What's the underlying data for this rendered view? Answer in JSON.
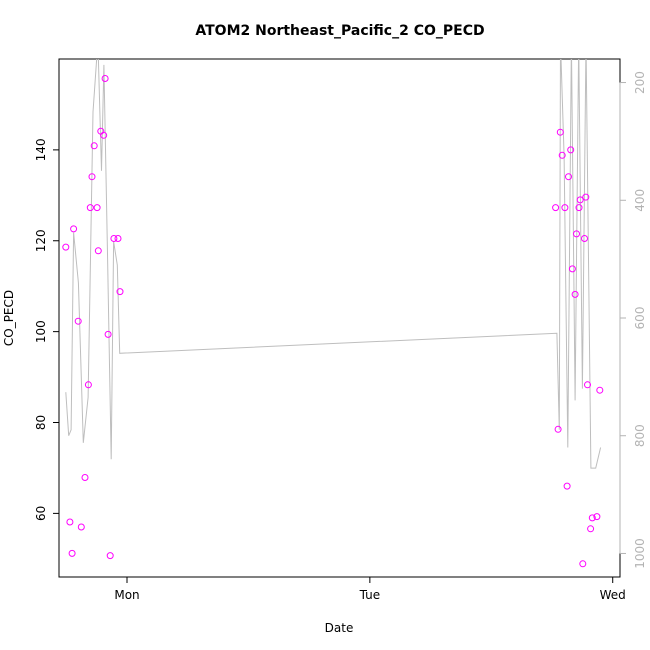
{
  "chart_data": {
    "type": "scatter",
    "title": "ATOM2 Northeast_Pacific_2 CO_PECD",
    "xlabel": "Date",
    "ylabel": "CO_PECD",
    "xlim": [
      -0.28,
      2.03
    ],
    "ylim": [
      46,
      160
    ],
    "x_ticks": [
      {
        "value": 0,
        "label": "Mon"
      },
      {
        "value": 1,
        "label": "Tue"
      },
      {
        "value": 2,
        "label": "Wed"
      }
    ],
    "y_ticks": [
      60,
      80,
      100,
      120,
      140
    ],
    "y2_ticks": [
      200,
      400,
      600,
      800,
      1000
    ],
    "y2_range": [
      160,
      1040
    ],
    "y2_reversed": true,
    "grid": false,
    "colors": {
      "points": "#ff00ff",
      "line": "#bebebe",
      "axis_right": "#b3b3b3"
    },
    "series": [
      {
        "kind": "points",
        "values": [
          [
            -0.252,
            118.6
          ],
          [
            -0.235,
            58.1
          ],
          [
            -0.226,
            51.2
          ],
          [
            -0.22,
            122.6
          ],
          [
            -0.201,
            102.3
          ],
          [
            -0.188,
            57.0
          ],
          [
            -0.173,
            67.9
          ],
          [
            -0.159,
            88.3
          ],
          [
            -0.151,
            127.3
          ],
          [
            -0.144,
            134.1
          ],
          [
            -0.135,
            140.9
          ],
          [
            -0.123,
            127.3
          ],
          [
            -0.118,
            117.8
          ],
          [
            -0.108,
            144.1
          ],
          [
            -0.096,
            143.2
          ],
          [
            -0.09,
            155.7
          ],
          [
            -0.078,
            99.4
          ],
          [
            -0.069,
            50.7
          ],
          [
            -0.054,
            120.5
          ],
          [
            -0.037,
            120.5
          ],
          [
            -0.029,
            108.8
          ],
          [
            1.765,
            127.3
          ],
          [
            1.775,
            78.5
          ],
          [
            1.784,
            143.9
          ],
          [
            1.792,
            138.8
          ],
          [
            1.803,
            127.3
          ],
          [
            1.812,
            66.0
          ],
          [
            1.818,
            134.1
          ],
          [
            1.827,
            140.0
          ],
          [
            1.834,
            113.8
          ],
          [
            1.845,
            108.2
          ],
          [
            1.851,
            121.5
          ],
          [
            1.861,
            127.3
          ],
          [
            1.866,
            129.0
          ],
          [
            1.877,
            48.9
          ],
          [
            1.884,
            120.5
          ],
          [
            1.889,
            129.6
          ],
          [
            1.896,
            88.3
          ],
          [
            1.909,
            56.6
          ],
          [
            1.916,
            59.0
          ],
          [
            1.935,
            59.3
          ],
          [
            1.947,
            87.1
          ]
        ]
      },
      {
        "kind": "line",
        "axis": "right",
        "values": [
          [
            -0.252,
            726
          ],
          [
            -0.24,
            800
          ],
          [
            -0.23,
            790
          ],
          [
            -0.22,
            455
          ],
          [
            -0.2,
            540
          ],
          [
            -0.18,
            812
          ],
          [
            -0.16,
            735
          ],
          [
            -0.14,
            250
          ],
          [
            -0.12,
            130
          ],
          [
            -0.105,
            350
          ],
          [
            -0.095,
            170
          ],
          [
            -0.08,
            500
          ],
          [
            -0.065,
            840
          ],
          [
            -0.055,
            470
          ],
          [
            -0.04,
            510
          ],
          [
            -0.03,
            660
          ],
          [
            1.77,
            626
          ],
          [
            1.78,
            790
          ],
          [
            1.785,
            130
          ],
          [
            1.8,
            325
          ],
          [
            1.815,
            820
          ],
          [
            1.83,
            130
          ],
          [
            1.845,
            740
          ],
          [
            1.86,
            130
          ],
          [
            1.875,
            720
          ],
          [
            1.89,
            130
          ],
          [
            1.91,
            855
          ],
          [
            1.93,
            855
          ],
          [
            1.95,
            820
          ]
        ]
      }
    ]
  }
}
